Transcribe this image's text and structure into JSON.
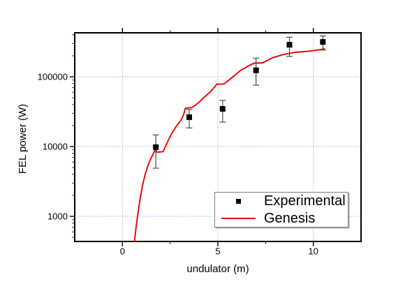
{
  "chart_data": {
    "type": "line+scatter",
    "title": "",
    "xlabel": "undulator (m)",
    "ylabel": "FEL power (W)",
    "x_axis": {
      "scale": "linear",
      "min": -2.5,
      "max": 12.5,
      "major_ticks": [
        0,
        5,
        10
      ],
      "major_tick_labels": [
        "0",
        "5",
        "10"
      ],
      "minor_ticks": [
        2.5,
        7.5
      ]
    },
    "y_axis": {
      "scale": "log",
      "min": 437,
      "max": 427000,
      "major_ticks": [
        1000,
        10000,
        100000
      ],
      "major_tick_labels": [
        "1000",
        "10000",
        "100000"
      ]
    },
    "grid": {
      "show_major": true,
      "style": "dotted",
      "color": "#9494d6"
    },
    "frame_color": "#000000",
    "legend": {
      "position": "inside-bottom-right",
      "entries": [
        {
          "label": "Experimental",
          "marker": "black-square"
        },
        {
          "label": "Genesis",
          "marker": "red-line"
        }
      ]
    },
    "series": [
      {
        "name": "Experimental",
        "type": "scatter",
        "marker": "square",
        "marker_color": "#000000",
        "error_bar_color": "#4d4d4d",
        "points": [
          {
            "x": 1.75,
            "y": 9800,
            "y_err_low": 4900,
            "y_err_high": 14700
          },
          {
            "x": 3.5,
            "y": 26400,
            "y_err_low": 18500,
            "y_err_high": 34000
          },
          {
            "x": 5.25,
            "y": 34700,
            "y_err_low": 22400,
            "y_err_high": 46000
          },
          {
            "x": 7.0,
            "y": 124000,
            "y_err_low": 76000,
            "y_err_high": 185000
          },
          {
            "x": 8.75,
            "y": 288000,
            "y_err_low": 196000,
            "y_err_high": 369000
          },
          {
            "x": 10.5,
            "y": 316000,
            "y_err_low": 242000,
            "y_err_high": 385000
          }
        ]
      },
      {
        "name": "Genesis",
        "type": "line",
        "color": "#e60000",
        "points": [
          [
            0.63,
            437
          ],
          [
            0.7,
            650
          ],
          [
            0.8,
            1050
          ],
          [
            0.92,
            1750
          ],
          [
            1.05,
            2750
          ],
          [
            1.18,
            3900
          ],
          [
            1.32,
            5200
          ],
          [
            1.47,
            6600
          ],
          [
            1.6,
            7700
          ],
          [
            1.7,
            8900
          ],
          [
            1.74,
            9100
          ],
          [
            1.8,
            8300
          ],
          [
            2.13,
            8450
          ],
          [
            2.35,
            11500
          ],
          [
            2.6,
            15800
          ],
          [
            2.85,
            20000
          ],
          [
            3.05,
            23500
          ],
          [
            3.2,
            28500
          ],
          [
            3.3,
            35500
          ],
          [
            3.63,
            36300
          ],
          [
            3.8,
            38800
          ],
          [
            4.0,
            43000
          ],
          [
            4.3,
            51500
          ],
          [
            4.6,
            61000
          ],
          [
            4.85,
            72500
          ],
          [
            4.93,
            78000
          ],
          [
            5.32,
            79200
          ],
          [
            5.6,
            90500
          ],
          [
            5.8,
            101000
          ],
          [
            6.2,
            124000
          ],
          [
            6.6,
            143000
          ],
          [
            6.9,
            157000
          ],
          [
            7.35,
            158500
          ],
          [
            7.6,
            172000
          ],
          [
            7.86,
            187000
          ],
          [
            8.4,
            207500
          ],
          [
            9.05,
            224000
          ],
          [
            9.8,
            233000
          ],
          [
            10.4,
            245000
          ],
          [
            10.58,
            252000
          ]
        ]
      }
    ]
  }
}
